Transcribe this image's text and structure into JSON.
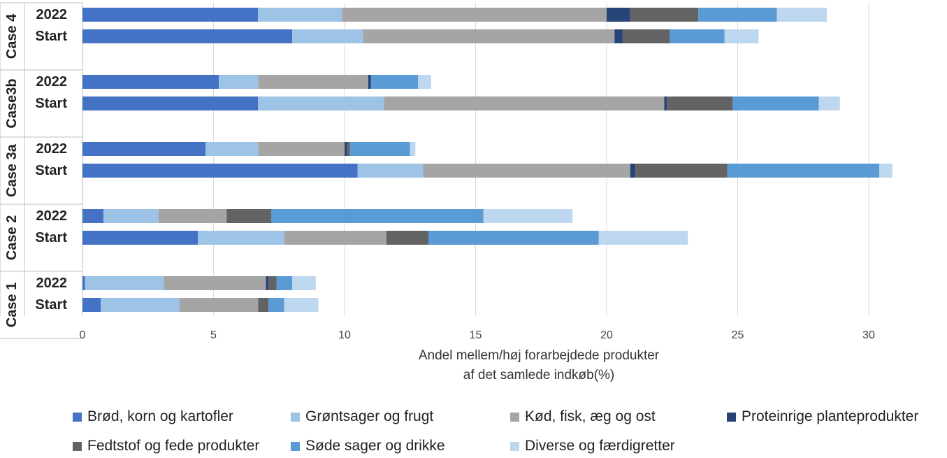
{
  "chart_data": {
    "type": "bar",
    "orientation": "horizontal",
    "stacked": true,
    "title": "",
    "xlabel": [
      "Andel mellem/høj forarbejdede produkter",
      "af det samlede indkøb(%)"
    ],
    "ylabel": "",
    "xlim": [
      0,
      31
    ],
    "xticks": [
      0,
      5,
      10,
      15,
      20,
      25,
      30
    ],
    "grid": true,
    "legend_position": "bottom",
    "groups": [
      {
        "name": "Case 4",
        "bars": [
          {
            "label": "2022",
            "values": [
              6.7,
              3.2,
              10.1,
              0.9,
              2.6,
              3.0,
              1.9
            ]
          },
          {
            "label": "Start",
            "values": [
              8.0,
              2.7,
              9.6,
              0.3,
              1.8,
              2.1,
              1.3
            ]
          }
        ]
      },
      {
        "name": "Case3b",
        "bars": [
          {
            "label": "2022",
            "values": [
              5.2,
              1.5,
              4.2,
              0.1,
              0.0,
              1.8,
              0.5
            ]
          },
          {
            "label": "Start",
            "values": [
              6.7,
              4.8,
              10.7,
              0.1,
              2.5,
              3.3,
              0.8
            ]
          }
        ]
      },
      {
        "name": "Case 3a",
        "bars": [
          {
            "label": "2022",
            "values": [
              4.7,
              2.0,
              3.3,
              0.1,
              0.1,
              2.3,
              0.2
            ]
          },
          {
            "label": "Start",
            "values": [
              10.5,
              2.5,
              7.9,
              0.2,
              3.5,
              5.8,
              0.5
            ]
          }
        ]
      },
      {
        "name": "Case 2",
        "bars": [
          {
            "label": "2022",
            "values": [
              0.8,
              2.1,
              2.6,
              0.0,
              1.7,
              8.1,
              3.4
            ]
          },
          {
            "label": "Start",
            "values": [
              4.4,
              3.3,
              3.9,
              0.0,
              1.6,
              6.5,
              3.4
            ]
          }
        ]
      },
      {
        "name": "Case 1",
        "bars": [
          {
            "label": "2022",
            "values": [
              0.1,
              3.0,
              3.9,
              0.1,
              0.3,
              0.6,
              0.9
            ]
          },
          {
            "label": "Start",
            "values": [
              0.7,
              3.0,
              3.0,
              0.0,
              0.4,
              0.6,
              1.3
            ]
          }
        ]
      }
    ],
    "series": [
      {
        "name": "Brød, korn og kartofler",
        "color": "#4472C4"
      },
      {
        "name": "Grøntsager og frugt",
        "color": "#9DC3E6"
      },
      {
        "name": "Kød, fisk, æg og ost",
        "color": "#A5A5A5"
      },
      {
        "name": "Proteinrige planteprodukter",
        "color": "#264478"
      },
      {
        "name": "Fedtstof og fede produkter",
        "color": "#636363"
      },
      {
        "name": "Søde sager og drikke",
        "color": "#5B9BD5"
      },
      {
        "name": "Diverse og færdigretter",
        "color": "#BDD7EE"
      }
    ]
  }
}
